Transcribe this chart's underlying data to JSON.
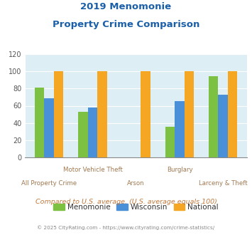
{
  "title_line1": "2019 Menomonie",
  "title_line2": "Property Crime Comparison",
  "categories": [
    "All Property Crime",
    "Motor Vehicle Theft",
    "Arson",
    "Burglary",
    "Larceny & Theft"
  ],
  "series": {
    "Menomonie": [
      81,
      53,
      0,
      36,
      94
    ],
    "Wisconsin": [
      69,
      58,
      0,
      65,
      73
    ],
    "National": [
      100,
      100,
      100,
      100,
      100
    ]
  },
  "colors": {
    "Menomonie": "#7dc142",
    "Wisconsin": "#4a90d9",
    "National": "#f5a623"
  },
  "ylim": [
    0,
    120
  ],
  "yticks": [
    0,
    20,
    40,
    60,
    80,
    100,
    120
  ],
  "note": "Compared to U.S. average. (U.S. average equals 100)",
  "footer": "© 2025 CityRating.com - https://www.cityrating.com/crime-statistics/",
  "background_color": "#ddeef4",
  "title_color": "#1a5fa8",
  "label_color": "#a07850",
  "note_color": "#c0783c",
  "footer_color": "#888888",
  "bar_width": 0.22
}
